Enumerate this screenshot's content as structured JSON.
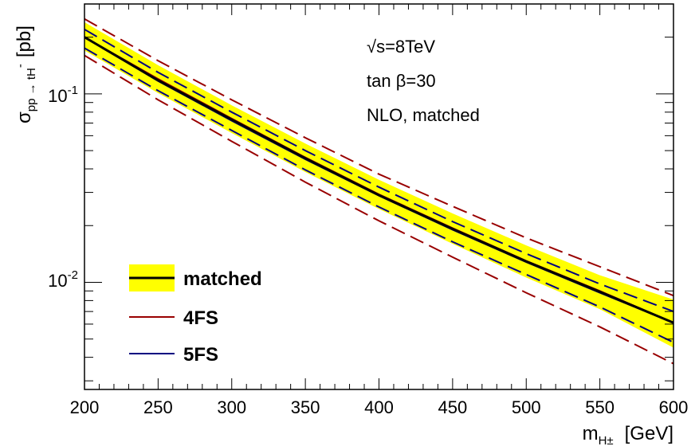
{
  "chart_data": {
    "type": "line",
    "x_axis": {
      "label_main": "m",
      "label_sub": "H±",
      "label_unit": "[GeV]",
      "range": [
        200,
        600
      ],
      "ticks": [
        "200",
        "250",
        "300",
        "350",
        "400",
        "450",
        "500",
        "550",
        "600"
      ]
    },
    "y_axis": {
      "label_main": "σ",
      "label_sub": "pp → tH",
      "label_sup": "-",
      "label_unit": "[pb]",
      "scale": "log",
      "range": [
        0.0027,
        0.3
      ],
      "major_ticks": [
        {
          "value": 0.1,
          "base": "10",
          "exp": "-1"
        },
        {
          "value": 0.01,
          "base": "10",
          "exp": "-2"
        }
      ]
    },
    "annotations": [
      "√s=8TeV",
      "tan β=30",
      "NLO, matched"
    ],
    "legend": {
      "placement": "bottom-left",
      "entries": [
        {
          "label": "matched",
          "style": "band"
        },
        {
          "label": "4FS",
          "style": "line"
        },
        {
          "label": "5FS",
          "style": "line"
        }
      ]
    },
    "x": [
      200,
      250,
      300,
      350,
      400,
      450,
      500,
      550,
      600
    ],
    "matched": {
      "central": [
        0.2,
        0.118,
        0.073,
        0.0455,
        0.029,
        0.0192,
        0.0129,
        0.0089,
        0.0061
      ],
      "band_low": [
        0.17,
        0.101,
        0.062,
        0.0385,
        0.0245,
        0.016,
        0.0106,
        0.0072,
        0.0045
      ],
      "band_high": [
        0.24,
        0.142,
        0.087,
        0.0545,
        0.035,
        0.0232,
        0.0157,
        0.0109,
        0.0081
      ]
    },
    "series": [
      {
        "name": "4FS",
        "color": "#990000",
        "central": [
          0.2,
          0.12,
          0.074,
          0.046,
          0.0293,
          0.0194,
          0.013,
          0.009,
          0.0061
        ],
        "up": [
          0.25,
          0.15,
          0.093,
          0.0585,
          0.0375,
          0.0253,
          0.0172,
          0.0121,
          0.0085
        ],
        "down": [
          0.16,
          0.093,
          0.056,
          0.034,
          0.0212,
          0.0136,
          0.0088,
          0.0058,
          0.0037
        ]
      },
      {
        "name": "5FS",
        "color": "#000080",
        "central": [
          0.2,
          0.117,
          0.072,
          0.045,
          0.0288,
          0.019,
          0.0128,
          0.0088,
          0.0061
        ],
        "up": [
          0.22,
          0.13,
          0.08,
          0.05,
          0.032,
          0.021,
          0.0142,
          0.0098,
          0.007
        ],
        "down": [
          0.175,
          0.104,
          0.064,
          0.0395,
          0.0251,
          0.0164,
          0.011,
          0.0074,
          0.0048
        ]
      }
    ],
    "colors": {
      "band": "#ffff00",
      "matched_line": "#000000",
      "4FS": "#990000",
      "5FS": "#000080"
    }
  }
}
